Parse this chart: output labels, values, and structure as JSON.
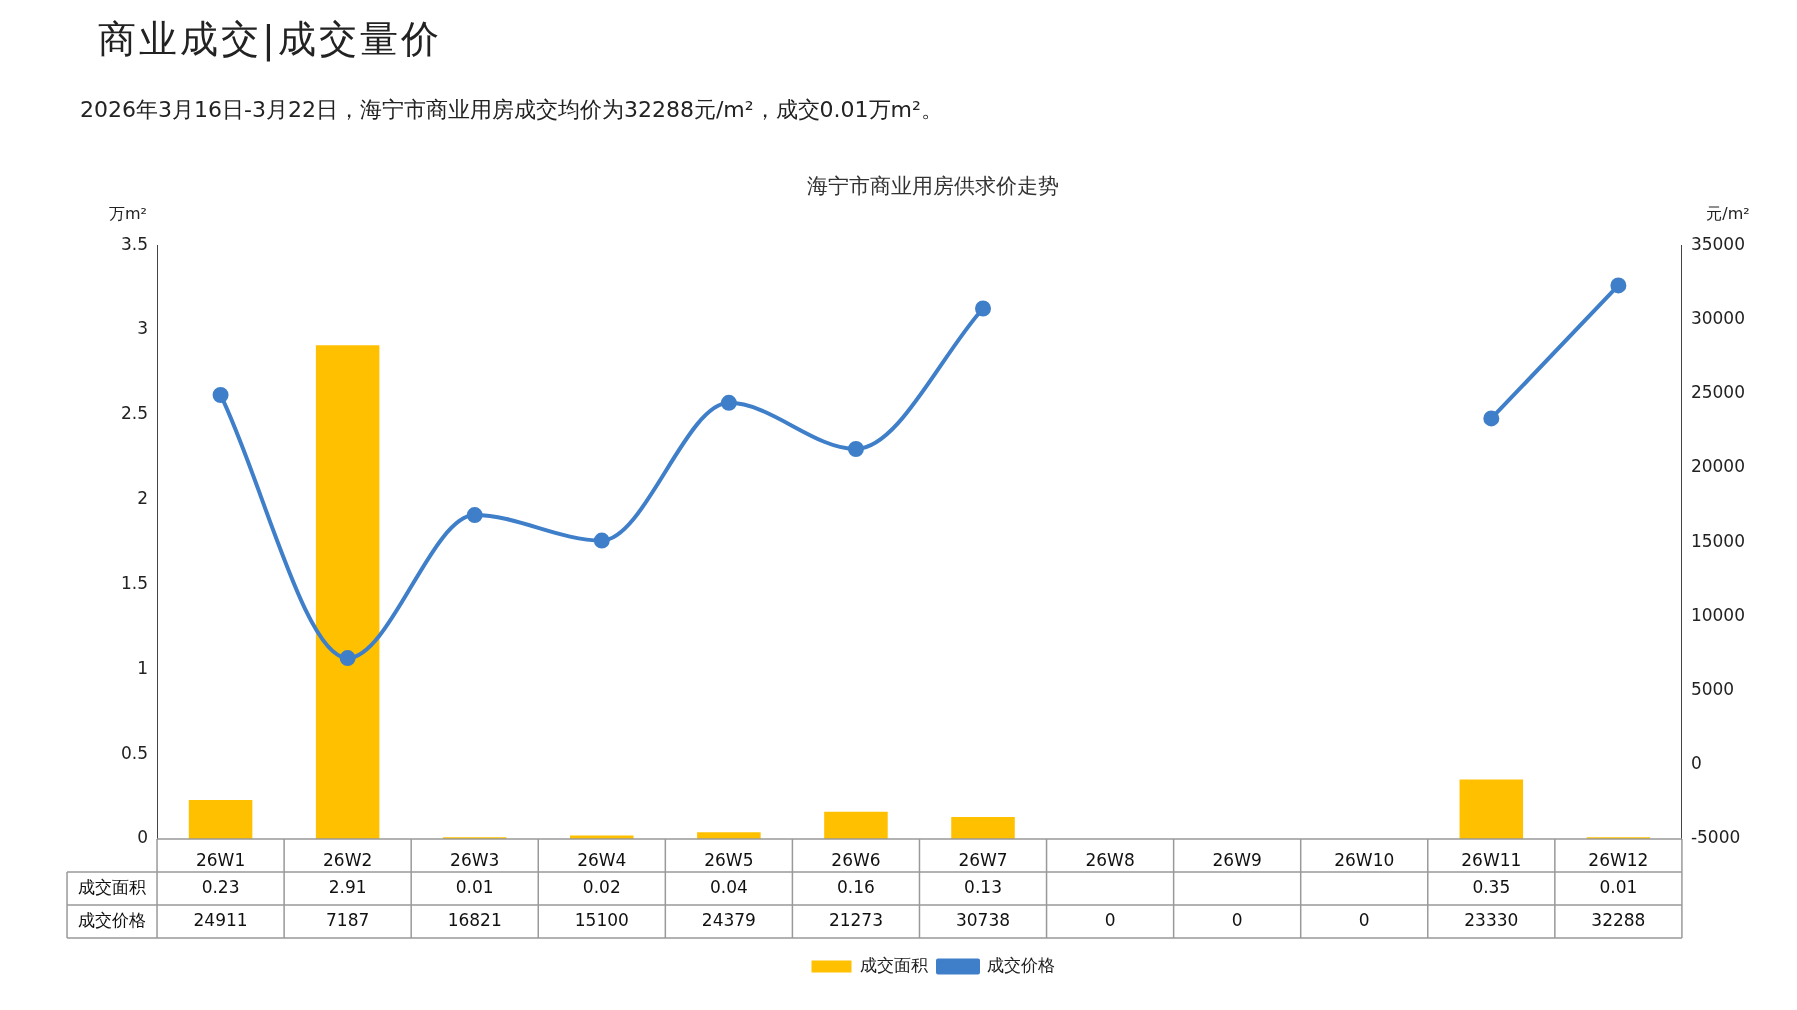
{
  "chart_data": {
    "type": "bar",
    "title": "海宁市商业用房供求价走势",
    "subtitle": "2026年3月16日-3月22日，海宁市商业用房成交均价为32288元/m²，成交0.01万m²。",
    "annotations": [
      "商业成交|成交量价"
    ],
    "ylabel": "万m²",
    "y2label": "元/m²",
    "categories": [
      "26W1",
      "26W2",
      "26W3",
      "26W4",
      "26W5",
      "26W6",
      "26W7",
      "26W8",
      "26W9",
      "26W10",
      "26W11",
      "26W12"
    ],
    "series": [
      {
        "name": "成交面积",
        "color": "#ffc000",
        "values": [
          0.23,
          2.91,
          0.01,
          0.02,
          0.04,
          0.16,
          0.13,
          null,
          null,
          null,
          0.35,
          0.01
        ],
        "value_labels": [
          "0.23",
          "2.91",
          "0.01",
          "0.02",
          "0.04",
          "0.16",
          "0.13",
          null,
          null,
          null,
          "0.35",
          "0.01"
        ]
      },
      {
        "name": "成交价格",
        "type": "line",
        "axis": "y2",
        "color": "#3f7fc9",
        "marker": "circle",
        "values": [
          24911,
          7187,
          16821,
          15100,
          24379,
          21273,
          30738,
          null,
          null,
          null,
          23330,
          32288
        ],
        "value_labels": [
          "24911",
          "7187",
          "16821",
          "15100",
          "24379",
          "21273",
          "30738",
          "0",
          "0",
          "0",
          "23330",
          "32288"
        ]
      }
    ],
    "ylim": [
      0,
      3.5
    ],
    "yticks": [
      0,
      {
        "value": 0.5,
        "label": "0.5"
      },
      1,
      {
        "value": 1.5,
        "label": "1.5"
      },
      2,
      {
        "value": 2.5,
        "label": "2.5"
      },
      3,
      {
        "value": 3.5,
        "label": "3.5"
      }
    ],
    "y2lim": [
      -5000,
      35000
    ],
    "y2ticks": [
      -5000,
      0,
      5000,
      10000,
      15000,
      20000,
      25000,
      30000,
      35000
    ],
    "grid": false,
    "legend": "bottom"
  }
}
